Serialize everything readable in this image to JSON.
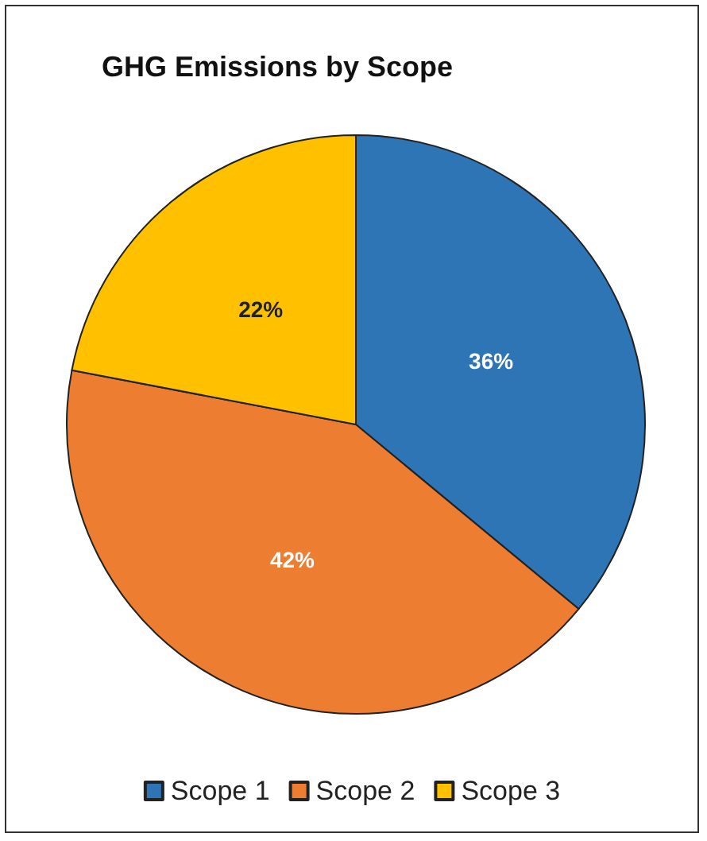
{
  "chart_data": {
    "type": "pie",
    "title": "GHG Emissions by Scope",
    "categories": [
      "Scope 1",
      "Scope 2",
      "Scope 3"
    ],
    "values": [
      36,
      42,
      22
    ],
    "colors": [
      "#2e75b6",
      "#ed7d31",
      "#ffc000"
    ],
    "value_labels": [
      "36%",
      "42%",
      "22%"
    ],
    "legend": "bottom"
  }
}
